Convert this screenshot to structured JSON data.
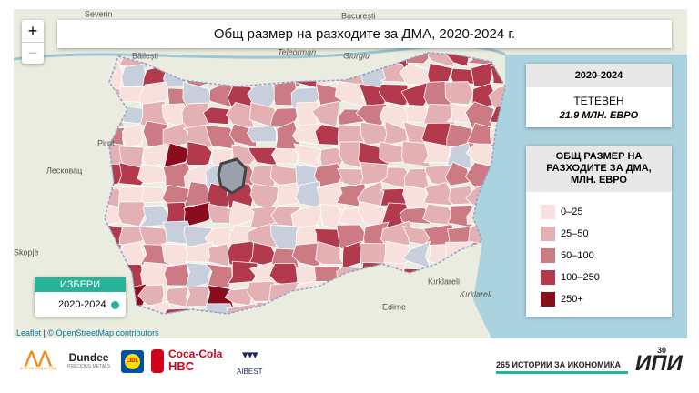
{
  "map": {
    "title": "Общ размер на разходите за ДМА, 2020-2024 г.",
    "zoom_in": "+",
    "zoom_out": "−",
    "places": [
      "Severin",
      "București",
      "Băilești",
      "Teleorman",
      "Giurgiu",
      "Pirot",
      "Лесковац",
      "Skopje",
      "Edirne",
      "Kırklareli",
      "Kırklareli"
    ],
    "attribution": {
      "leaflet": "Leaflet",
      "osm": "© OpenStreetMap contributors"
    }
  },
  "info": {
    "period": "2020-2024",
    "name": "ТЕТЕВЕН",
    "value": "21.9 МЛН. ЕВРО"
  },
  "legend": {
    "title": "ОБЩ РАЗМЕР НА РАЗХОДИТЕ ЗА ДМА, МЛН. ЕВРО",
    "items": [
      {
        "label": "0–25",
        "color": "#f8e1dc"
      },
      {
        "label": "25–50",
        "color": "#e3b1b4"
      },
      {
        "label": "50–100",
        "color": "#cc7a84"
      },
      {
        "label": "100–250",
        "color": "#b23a4c"
      },
      {
        "label": "250+",
        "color": "#8b0d1c"
      }
    ]
  },
  "selector": {
    "title": "ИЗБЕРИ",
    "option": "2020-2024"
  },
  "footer": {
    "logos": [
      "АГАРИЯ ИНДЪСТ-БД",
      "Dundee",
      "PRECIOUS METALS",
      "LIDL",
      "Coca-Cola",
      "HBC",
      "AIBEST"
    ],
    "series": "265 ИСТОРИИ ЗА ИКОНОМИКА",
    "ipi": "ИПИ",
    "ipi_years": "30"
  }
}
